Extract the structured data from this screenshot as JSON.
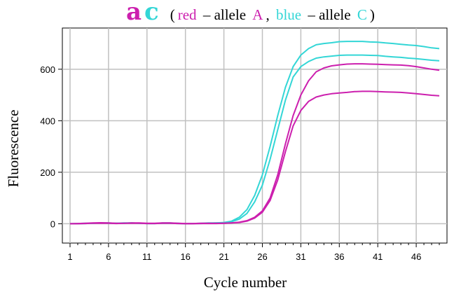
{
  "chart_data": {
    "type": "line",
    "title": {
      "big_a": "a",
      "big_c": "c",
      "open_paren": "(",
      "red_word": "red",
      "dash_1": " – allele ",
      "allele_a": "A",
      "comma": ", ",
      "blue_word": "blue",
      "dash_2": " – allele ",
      "allele_c": "C",
      "close_paren": ")"
    },
    "xlabel": "Cycle number",
    "ylabel": "Fluorescence",
    "xlim": [
      0,
      50
    ],
    "ylim": [
      -75,
      760
    ],
    "x_ticks": [
      1,
      6,
      11,
      16,
      21,
      26,
      31,
      36,
      41,
      46
    ],
    "y_ticks": [
      0,
      200,
      400,
      600
    ],
    "grid": true,
    "colors": {
      "allele_a": "#cc1fae",
      "allele_c": "#33d6d6",
      "grid": "#c0c0c0"
    },
    "series": [
      {
        "group": "allele_c",
        "x": [
          1,
          2,
          3,
          4,
          5,
          6,
          7,
          8,
          9,
          10,
          11,
          12,
          13,
          14,
          15,
          16,
          17,
          18,
          19,
          20,
          21,
          22,
          23,
          24,
          25,
          26,
          27,
          28,
          29,
          30,
          31,
          32,
          33,
          34,
          35,
          36,
          37,
          38,
          39,
          40,
          41,
          42,
          43,
          44,
          45,
          46,
          47,
          48,
          49
        ],
        "y": [
          0,
          1,
          2,
          2,
          3,
          3,
          2,
          3,
          3,
          2,
          1,
          1,
          3,
          3,
          2,
          0,
          1,
          2,
          3,
          3,
          5,
          10,
          25,
          55,
          110,
          190,
          300,
          420,
          530,
          610,
          655,
          680,
          695,
          700,
          703,
          707,
          708,
          708,
          708,
          706,
          705,
          702,
          700,
          697,
          694,
          692,
          688,
          683,
          680
        ]
      },
      {
        "group": "allele_c",
        "x": [
          1,
          2,
          3,
          4,
          5,
          6,
          7,
          8,
          9,
          10,
          11,
          12,
          13,
          14,
          15,
          16,
          17,
          18,
          19,
          20,
          21,
          22,
          23,
          24,
          25,
          26,
          27,
          28,
          29,
          30,
          31,
          32,
          33,
          34,
          35,
          36,
          37,
          38,
          39,
          40,
          41,
          42,
          43,
          44,
          45,
          46,
          47,
          48,
          49
        ],
        "y": [
          0,
          0,
          1,
          2,
          3,
          2,
          2,
          2,
          3,
          2,
          1,
          1,
          2,
          2,
          1,
          0,
          1,
          1,
          2,
          3,
          4,
          8,
          18,
          40,
          85,
          150,
          250,
          365,
          480,
          570,
          610,
          630,
          643,
          648,
          651,
          654,
          655,
          655,
          655,
          654,
          653,
          650,
          648,
          646,
          643,
          641,
          638,
          635,
          633
        ]
      },
      {
        "group": "allele_a",
        "x": [
          1,
          2,
          3,
          4,
          5,
          6,
          7,
          8,
          9,
          10,
          11,
          12,
          13,
          14,
          15,
          16,
          17,
          18,
          19,
          20,
          21,
          22,
          23,
          24,
          25,
          26,
          27,
          28,
          29,
          30,
          31,
          32,
          33,
          34,
          35,
          36,
          37,
          38,
          39,
          40,
          41,
          42,
          43,
          44,
          45,
          46,
          47,
          48,
          49
        ],
        "y": [
          0,
          1,
          2,
          3,
          4,
          3,
          2,
          2,
          3,
          3,
          2,
          2,
          3,
          3,
          2,
          1,
          1,
          2,
          2,
          2,
          2,
          3,
          6,
          12,
          25,
          50,
          100,
          190,
          310,
          420,
          500,
          555,
          590,
          605,
          613,
          617,
          620,
          621,
          621,
          620,
          619,
          618,
          617,
          616,
          614,
          610,
          605,
          600,
          596
        ]
      },
      {
        "group": "allele_a",
        "x": [
          1,
          2,
          3,
          4,
          5,
          6,
          7,
          8,
          9,
          10,
          11,
          12,
          13,
          14,
          15,
          16,
          17,
          18,
          19,
          20,
          21,
          22,
          23,
          24,
          25,
          26,
          27,
          28,
          29,
          30,
          31,
          32,
          33,
          34,
          35,
          36,
          37,
          38,
          39,
          40,
          41,
          42,
          43,
          44,
          45,
          46,
          47,
          48,
          49
        ],
        "y": [
          0,
          0,
          1,
          2,
          2,
          2,
          1,
          2,
          2,
          2,
          1,
          1,
          2,
          2,
          1,
          0,
          0,
          1,
          1,
          1,
          2,
          3,
          5,
          10,
          22,
          45,
          90,
          170,
          280,
          380,
          440,
          475,
          492,
          500,
          505,
          508,
          510,
          513,
          514,
          514,
          513,
          512,
          511,
          510,
          508,
          505,
          502,
          499,
          497
        ]
      }
    ]
  }
}
